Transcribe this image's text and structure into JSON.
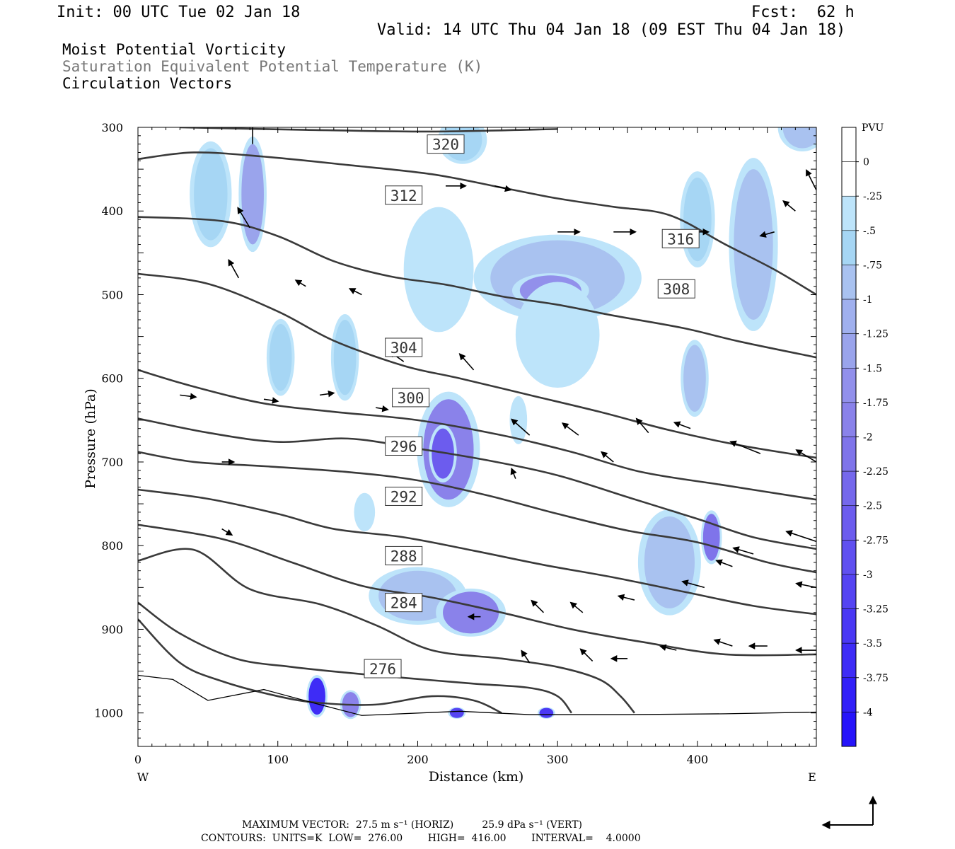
{
  "header": {
    "init": "Init: 00 UTC Tue 02 Jan 18",
    "fcst": "Fcst:  62 h",
    "valid": "Valid: 14 UTC Thu 04 Jan 18 (09 EST Thu 04 Jan 18)",
    "field1": "Moist Potential Vorticity",
    "field2": "Saturation Equivalent Potential Temperature (K)",
    "field3": "Circulation Vectors"
  },
  "footer": {
    "max_vector": "MAXIMUM VECTOR:  27.5 m s⁻¹ (HORIZ)         25.9 dPa s⁻¹ (VERT)",
    "contours": "CONTOURS:  UNITS=K  LOW=  276.00        HIGH=  416.00        INTERVAL=    4.0000"
  },
  "colors": {
    "contour": "#3a3a3a",
    "pv_scale": [
      "#ffffff",
      "#ffffff",
      "#bde4fa",
      "#a6d6f4",
      "#a9c2f0",
      "#a0b0ee",
      "#9aa4ec",
      "#9290eb",
      "#8a82ea",
      "#7f74ea",
      "#7568ec",
      "#6c5cee",
      "#6050f0",
      "#5544f2",
      "#4a38f4",
      "#3e2cf6",
      "#3220f8",
      "#2614fa"
    ]
  },
  "chart_data": {
    "type": "contour",
    "xlabel": "Distance (km)",
    "ylabel": "Pressure (hPa)",
    "xlim": [
      0,
      485
    ],
    "ylim": [
      1040,
      300
    ],
    "x_ticks": [
      0,
      100,
      200,
      300,
      400
    ],
    "y_ticks": [
      300,
      400,
      500,
      600,
      700,
      800,
      900,
      1000
    ],
    "x_ends": {
      "left": "W",
      "right": "E"
    },
    "colorbar": {
      "unit": "PVU",
      "labels": [
        "0",
        "-.25",
        "-.5",
        "-.75",
        "-1",
        "-1.25",
        "-1.5",
        "-1.75",
        "-2",
        "-2.25",
        "-2.5",
        "-2.75",
        "-3",
        "-3.25",
        "-3.5",
        "-3.75",
        "-4"
      ]
    },
    "theta_e_contours": [
      {
        "level": 320,
        "points": [
          [
            30,
            300
          ],
          [
            120,
            303
          ],
          [
            210,
            305
          ],
          [
            300,
            302
          ]
        ],
        "label_at": [
          220,
          320
        ]
      },
      {
        "level": 316,
        "points": [
          [
            0,
            338
          ],
          [
            40,
            330
          ],
          [
            90,
            335
          ],
          [
            150,
            345
          ],
          [
            210,
            356
          ],
          [
            260,
            372
          ],
          [
            300,
            385
          ],
          [
            340,
            395
          ],
          [
            380,
            405
          ],
          [
            420,
            440
          ],
          [
            455,
            470
          ],
          [
            485,
            500
          ]
        ],
        "label_at": [
          388,
          433
        ]
      },
      {
        "level": 312,
        "points": [
          [
            0,
            407
          ],
          [
            60,
            412
          ],
          [
            100,
            430
          ],
          [
            140,
            460
          ],
          [
            180,
            478
          ],
          [
            220,
            488
          ],
          [
            260,
            502
          ],
          [
            300,
            512
          ],
          [
            340,
            525
          ],
          [
            390,
            540
          ],
          [
            430,
            556
          ],
          [
            485,
            575
          ]
        ],
        "label_at": [
          190,
          381
        ]
      },
      {
        "level": 308,
        "points": [
          [
            0,
            475
          ],
          [
            50,
            487
          ],
          [
            100,
            520
          ],
          [
            140,
            555
          ],
          [
            190,
            585
          ],
          [
            230,
            600
          ],
          [
            280,
            620
          ],
          [
            330,
            640
          ],
          [
            380,
            662
          ],
          [
            430,
            680
          ],
          [
            485,
            695
          ]
        ],
        "label_at": [
          385,
          493
        ]
      },
      {
        "level": 304,
        "points": [
          [
            0,
            590
          ],
          [
            40,
            610
          ],
          [
            90,
            630
          ],
          [
            140,
            640
          ],
          [
            200,
            650
          ],
          [
            260,
            668
          ],
          [
            310,
            688
          ],
          [
            360,
            712
          ],
          [
            420,
            728
          ],
          [
            485,
            745
          ]
        ],
        "label_at": [
          190,
          563
        ]
      },
      {
        "level": 300,
        "points": [
          [
            0,
            648
          ],
          [
            50,
            665
          ],
          [
            100,
            676
          ],
          [
            150,
            672
          ],
          [
            200,
            684
          ],
          [
            250,
            698
          ],
          [
            300,
            716
          ],
          [
            350,
            742
          ],
          [
            400,
            768
          ],
          [
            440,
            790
          ],
          [
            485,
            804
          ]
        ],
        "label_at": [
          195,
          623
        ]
      },
      {
        "level": 296,
        "points": [
          [
            0,
            688
          ],
          [
            40,
            700
          ],
          [
            90,
            705
          ],
          [
            150,
            712
          ],
          [
            200,
            722
          ],
          [
            250,
            740
          ],
          [
            300,
            762
          ],
          [
            350,
            782
          ],
          [
            400,
            796
          ],
          [
            450,
            820
          ],
          [
            485,
            832
          ]
        ],
        "label_at": [
          190,
          681
        ]
      },
      {
        "level": 292,
        "points": [
          [
            0,
            733
          ],
          [
            50,
            744
          ],
          [
            100,
            762
          ],
          [
            140,
            780
          ],
          [
            190,
            790
          ],
          [
            240,
            806
          ],
          [
            290,
            823
          ],
          [
            340,
            838
          ],
          [
            390,
            855
          ],
          [
            440,
            872
          ],
          [
            485,
            882
          ]
        ],
        "label_at": [
          190,
          741
        ]
      },
      {
        "level": 288,
        "points": [
          [
            0,
            775
          ],
          [
            60,
            792
          ],
          [
            110,
            820
          ],
          [
            160,
            848
          ],
          [
            210,
            862
          ],
          [
            260,
            880
          ],
          [
            310,
            900
          ],
          [
            360,
            915
          ],
          [
            420,
            930
          ],
          [
            485,
            930
          ]
        ],
        "label_at": [
          190,
          812
        ]
      },
      {
        "level": 284,
        "points": [
          [
            0,
            818
          ],
          [
            40,
            805
          ],
          [
            80,
            852
          ],
          [
            130,
            870
          ],
          [
            170,
            895
          ],
          [
            210,
            925
          ],
          [
            260,
            935
          ],
          [
            300,
            945
          ],
          [
            330,
            960
          ],
          [
            345,
            980
          ],
          [
            355,
            1000
          ]
        ],
        "label_at": [
          190,
          868
        ]
      },
      {
        "level": 280,
        "points": [
          [
            0,
            868
          ],
          [
            30,
            905
          ],
          [
            70,
            935
          ],
          [
            110,
            945
          ],
          [
            150,
            952
          ],
          [
            190,
            958
          ],
          [
            240,
            965
          ],
          [
            280,
            970
          ],
          [
            300,
            980
          ],
          [
            310,
            1000
          ]
        ],
        "label_at": null
      },
      {
        "level": 276,
        "points": [
          [
            0,
            888
          ],
          [
            30,
            940
          ],
          [
            60,
            962
          ],
          [
            100,
            980
          ],
          [
            130,
            988
          ],
          [
            170,
            990
          ],
          [
            210,
            980
          ],
          [
            240,
            985
          ],
          [
            260,
            1000
          ]
        ],
        "label_at": [
          175,
          947
        ]
      }
    ],
    "terrain": [
      [
        0,
        955
      ],
      [
        25,
        960
      ],
      [
        50,
        985
      ],
      [
        90,
        972
      ],
      [
        130,
        990
      ],
      [
        160,
        1003
      ],
      [
        230,
        998
      ],
      [
        280,
        1002
      ],
      [
        350,
        1002
      ],
      [
        420,
        1001
      ],
      [
        485,
        999
      ]
    ],
    "pv_blobs": [
      {
        "x": 82,
        "p": 380,
        "rx": 8,
        "rp": 60,
        "pvu": -1.25
      },
      {
        "x": 52,
        "p": 380,
        "rx": 12,
        "rp": 55,
        "pvu": -0.5
      },
      {
        "x": 232,
        "p": 315,
        "rx": 14,
        "rp": 25,
        "pvu": -0.5
      },
      {
        "x": 300,
        "p": 480,
        "rx": 48,
        "rp": 45,
        "pvu": -0.75
      },
      {
        "x": 295,
        "p": 495,
        "rx": 22,
        "rp": 18,
        "pvu": -1.5
      },
      {
        "x": 300,
        "p": 548,
        "rx": 24,
        "rp": 55,
        "pvu": -0.25
      },
      {
        "x": 215,
        "p": 470,
        "rx": 20,
        "rp": 65,
        "pvu": -0.25
      },
      {
        "x": 440,
        "p": 440,
        "rx": 14,
        "rp": 90,
        "pvu": -0.75
      },
      {
        "x": 400,
        "p": 410,
        "rx": 10,
        "rp": 50,
        "pvu": -0.5
      },
      {
        "x": 475,
        "p": 300,
        "rx": 14,
        "rp": 25,
        "pvu": -0.75
      },
      {
        "x": 222,
        "p": 685,
        "rx": 18,
        "rp": 60,
        "pvu": -1.75
      },
      {
        "x": 218,
        "p": 690,
        "rx": 8,
        "rp": 30,
        "pvu": -2.5
      },
      {
        "x": 380,
        "p": 820,
        "rx": 18,
        "rp": 55,
        "pvu": -0.75
      },
      {
        "x": 410,
        "p": 790,
        "rx": 6,
        "rp": 28,
        "pvu": -2
      },
      {
        "x": 200,
        "p": 860,
        "rx": 28,
        "rp": 30,
        "pvu": -0.75
      },
      {
        "x": 238,
        "p": 880,
        "rx": 20,
        "rp": 25,
        "pvu": -1.75
      },
      {
        "x": 102,
        "p": 575,
        "rx": 8,
        "rp": 40,
        "pvu": -0.5
      },
      {
        "x": 148,
        "p": 575,
        "rx": 8,
        "rp": 45,
        "pvu": -0.5
      },
      {
        "x": 398,
        "p": 600,
        "rx": 8,
        "rp": 40,
        "pvu": -0.75
      },
      {
        "x": 128,
        "p": 980,
        "rx": 6,
        "rp": 22,
        "pvu": -3.5
      },
      {
        "x": 152,
        "p": 990,
        "rx": 6,
        "rp": 15,
        "pvu": -1.75
      },
      {
        "x": 162,
        "p": 760,
        "rx": 6,
        "rp": 20,
        "pvu": -0.25
      },
      {
        "x": 272,
        "p": 650,
        "rx": 5,
        "rp": 25,
        "pvu": -0.25
      },
      {
        "x": 292,
        "p": 1000,
        "rx": 5,
        "rp": 6,
        "pvu": -3.25
      },
      {
        "x": 228,
        "p": 1000,
        "rx": 5,
        "rp": 6,
        "pvu": -3.0
      }
    ],
    "vectors": [
      {
        "x": 82,
        "p": 320,
        "u": 0,
        "v": -1.2
      },
      {
        "x": 80,
        "p": 420,
        "u": -0.6,
        "v": -1.0
      },
      {
        "x": 220,
        "p": 370,
        "u": 1.0,
        "v": 0
      },
      {
        "x": 255,
        "p": 370,
        "u": 0.8,
        "v": 0.2
      },
      {
        "x": 300,
        "p": 425,
        "u": 1.1,
        "v": 0
      },
      {
        "x": 340,
        "p": 425,
        "u": 1.1,
        "v": 0
      },
      {
        "x": 395,
        "p": 425,
        "u": 0.9,
        "v": 0
      },
      {
        "x": 455,
        "p": 425,
        "u": -0.7,
        "v": 0.2
      },
      {
        "x": 470,
        "p": 400,
        "u": -0.6,
        "v": -0.5
      },
      {
        "x": 485,
        "p": 375,
        "u": -0.5,
        "v": -1.0
      },
      {
        "x": 72,
        "p": 480,
        "u": -0.5,
        "v": -0.9
      },
      {
        "x": 120,
        "p": 490,
        "u": -0.5,
        "v": -0.3
      },
      {
        "x": 160,
        "p": 500,
        "u": -0.6,
        "v": -0.3
      },
      {
        "x": 240,
        "p": 590,
        "u": -0.7,
        "v": -0.8
      },
      {
        "x": 190,
        "p": 580,
        "u": -0.7,
        "v": -0.5
      },
      {
        "x": 280,
        "p": 668,
        "u": -0.9,
        "v": -0.8
      },
      {
        "x": 315,
        "p": 668,
        "u": -0.8,
        "v": -0.6
      },
      {
        "x": 340,
        "p": 700,
        "u": -0.6,
        "v": -0.5
      },
      {
        "x": 365,
        "p": 665,
        "u": -0.6,
        "v": -0.7
      },
      {
        "x": 395,
        "p": 660,
        "u": -0.8,
        "v": -0.3
      },
      {
        "x": 445,
        "p": 690,
        "u": -1.5,
        "v": -0.6
      },
      {
        "x": 485,
        "p": 700,
        "u": -1.0,
        "v": -0.6
      },
      {
        "x": 485,
        "p": 795,
        "u": -1.5,
        "v": -0.5
      },
      {
        "x": 440,
        "p": 810,
        "u": -1.0,
        "v": -0.3
      },
      {
        "x": 405,
        "p": 850,
        "u": -1.1,
        "v": -0.3
      },
      {
        "x": 425,
        "p": 825,
        "u": -0.8,
        "v": -0.3
      },
      {
        "x": 485,
        "p": 850,
        "u": -1.0,
        "v": -0.2
      },
      {
        "x": 485,
        "p": 925,
        "u": -1.0,
        "v": 0
      },
      {
        "x": 450,
        "p": 920,
        "u": -0.9,
        "v": 0
      },
      {
        "x": 425,
        "p": 920,
        "u": -0.9,
        "v": -0.3
      },
      {
        "x": 385,
        "p": 925,
        "u": -0.8,
        "v": -0.2
      },
      {
        "x": 350,
        "p": 935,
        "u": -0.8,
        "v": 0
      },
      {
        "x": 325,
        "p": 938,
        "u": -0.6,
        "v": -0.6
      },
      {
        "x": 280,
        "p": 940,
        "u": -0.4,
        "v": -0.6
      },
      {
        "x": 318,
        "p": 880,
        "u": -0.6,
        "v": -0.5
      },
      {
        "x": 290,
        "p": 880,
        "u": -0.6,
        "v": -0.6
      },
      {
        "x": 355,
        "p": 865,
        "u": -0.8,
        "v": -0.2
      },
      {
        "x": 270,
        "p": 720,
        "u": -0.2,
        "v": -0.5
      },
      {
        "x": 30,
        "p": 620,
        "u": 0.8,
        "v": 0.1
      },
      {
        "x": 90,
        "p": 625,
        "u": 0.7,
        "v": 0.1
      },
      {
        "x": 130,
        "p": 620,
        "u": 0.7,
        "v": -0.1
      },
      {
        "x": 170,
        "p": 635,
        "u": 0.6,
        "v": 0.1
      },
      {
        "x": 60,
        "p": 700,
        "u": 0.6,
        "v": 0
      },
      {
        "x": 60,
        "p": 780,
        "u": 0.5,
        "v": 0.3
      },
      {
        "x": 245,
        "p": 885,
        "u": -0.6,
        "v": 0
      }
    ]
  }
}
